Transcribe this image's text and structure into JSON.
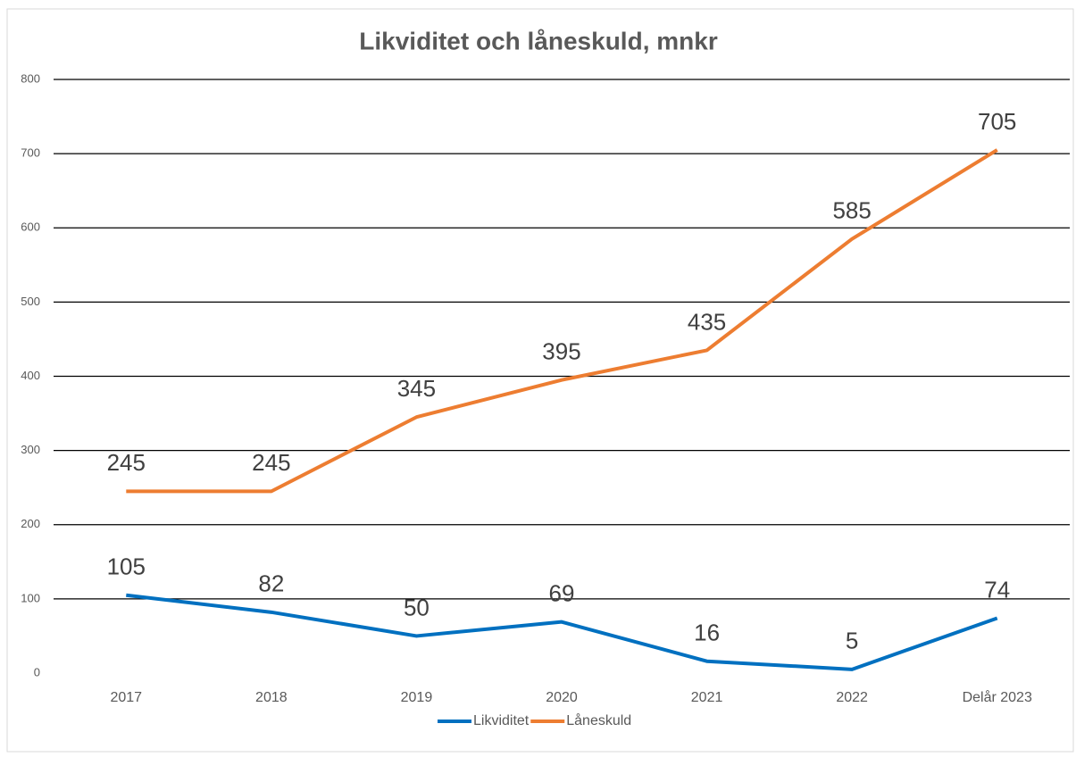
{
  "chart_data": {
    "type": "line",
    "title": "Likviditet och låneskuld, mnkr",
    "categories": [
      "2017",
      "2018",
      "2019",
      "2020",
      "2021",
      "2022",
      "Delår 2023"
    ],
    "series": [
      {
        "name": "Likviditet",
        "color": "#0070c0",
        "values": [
          105,
          82,
          50,
          69,
          16,
          5,
          74
        ]
      },
      {
        "name": "Låneskuld",
        "color": "#ed7d31",
        "values": [
          245,
          245,
          345,
          395,
          435,
          585,
          705
        ]
      }
    ],
    "ylim": [
      0,
      800
    ],
    "yticks": [
      0,
      100,
      200,
      300,
      400,
      500,
      600,
      700,
      800
    ],
    "grid": true,
    "legend": "bottom"
  }
}
